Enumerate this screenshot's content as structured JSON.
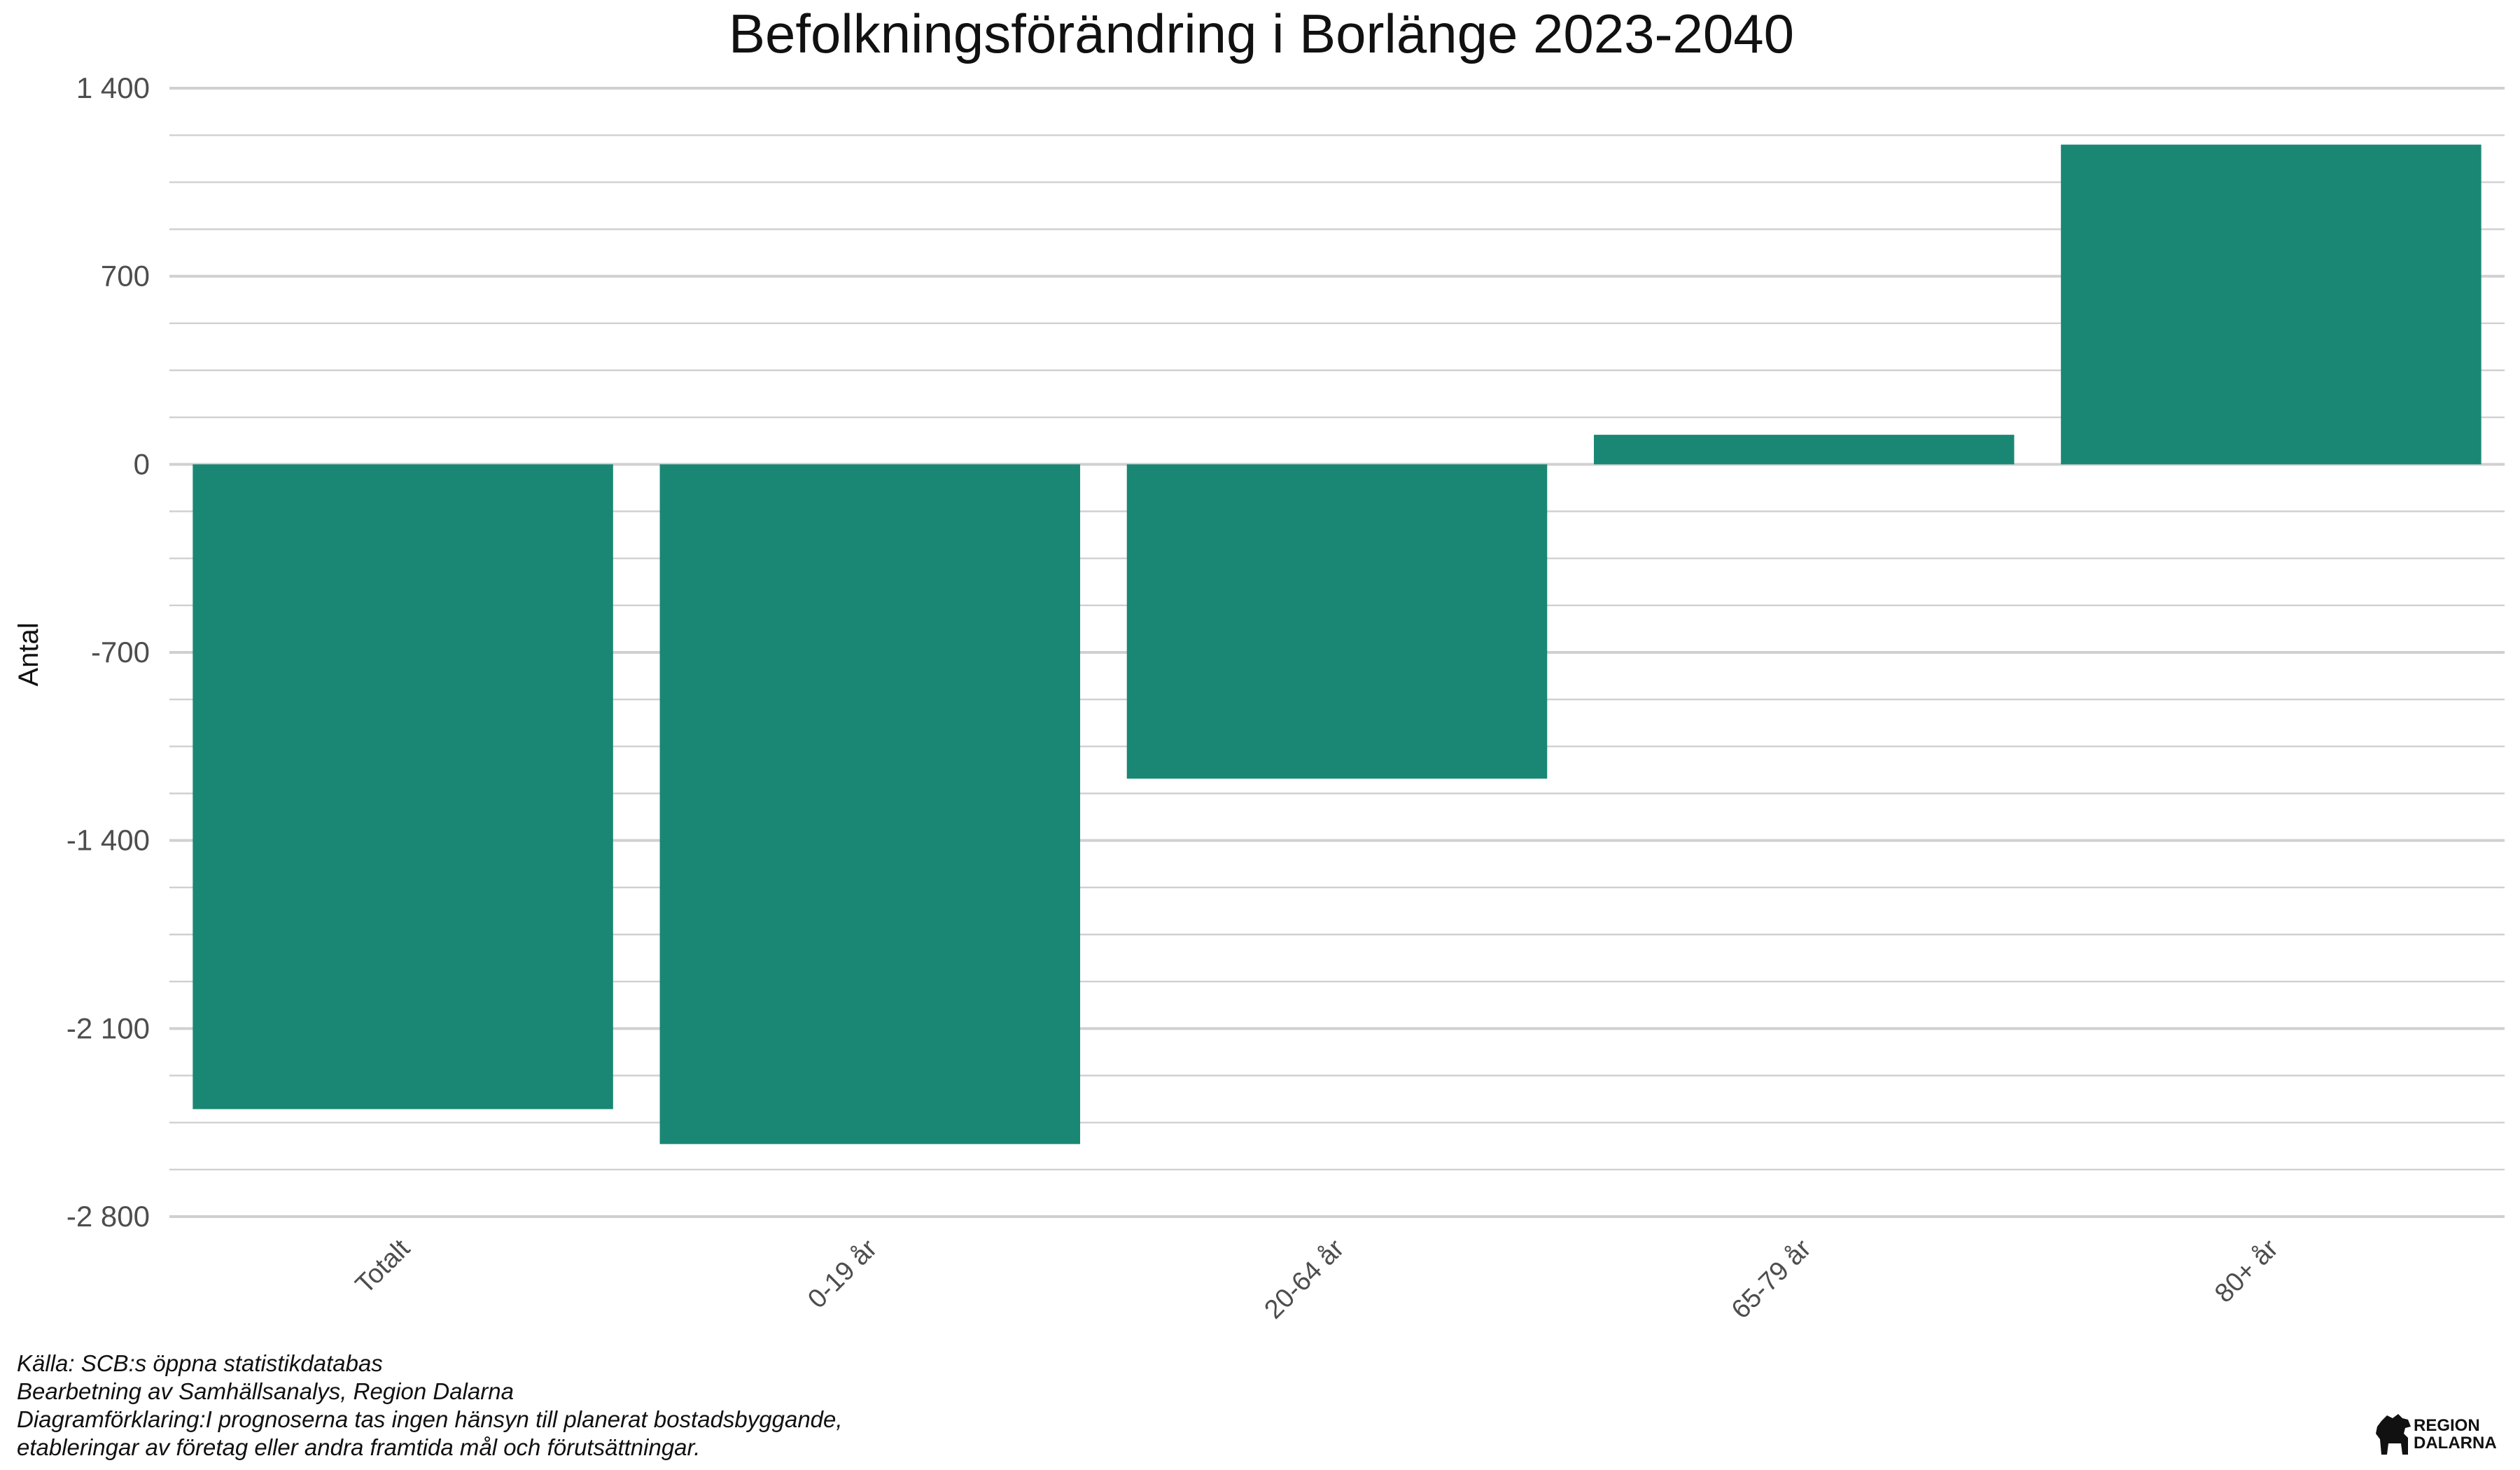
{
  "chart_data": {
    "type": "bar",
    "title": "Befolkningsförändring i Borlänge 2023-2040",
    "xlabel": "",
    "ylabel": "Antal",
    "categories": [
      "Totalt",
      "0-19 år",
      "20-64 år",
      "65-79 år",
      "80+ år"
    ],
    "values": [
      -2400,
      -2530,
      -1170,
      110,
      1190
    ],
    "ylim": [
      -2800,
      1400
    ],
    "yticks": [
      1400,
      700,
      0,
      -700,
      -1400,
      -2100,
      -2800
    ],
    "ytick_labels": [
      "1 400",
      "700",
      "0",
      "-700",
      "-1 400",
      "-2 100",
      "-2 800"
    ],
    "grid": true,
    "legend": "none"
  },
  "colors": {
    "bar": "#1a8775",
    "grid": "#d0d0d0",
    "text": "#111111",
    "tick_text": "#4d4d4d"
  },
  "caption": {
    "source": "Källa: SCB:s öppna statistikdatabas",
    "processing": "Bearbetning av Samhällsanalys, Region Dalarna",
    "note_line1": "Diagramförklaring:I prognoserna tas ingen hänsyn till planerat bostadsbyggande,",
    "note_line2": "etableringar av företag eller andra framtida mål och förutsättningar."
  },
  "logo": {
    "icon": "dala-horse-icon",
    "line1": "REGION",
    "line2": "DALARNA"
  }
}
